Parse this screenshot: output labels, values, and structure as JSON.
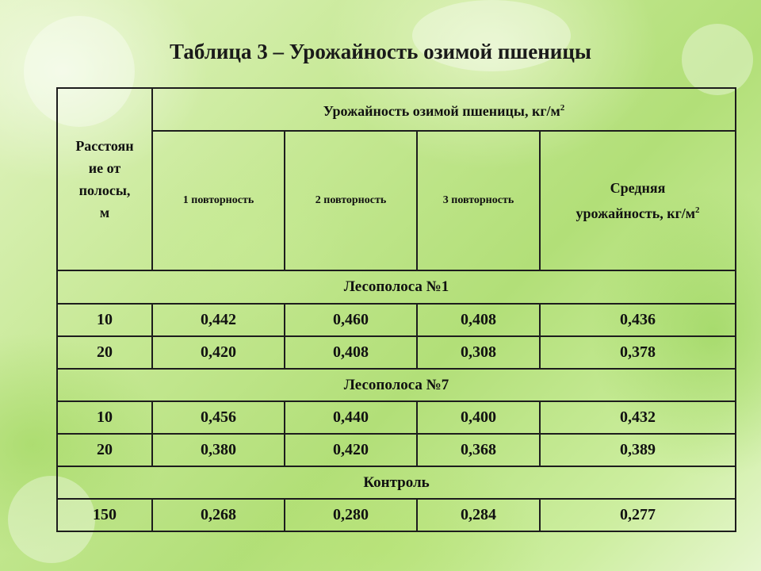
{
  "title": "Таблица 3 – Урожайность озимой пшеницы",
  "table": {
    "row_header": "Расстояние от полосы, м",
    "row_header_lines": [
      "Расстоян",
      "ие от",
      "полосы,",
      "м"
    ],
    "group_header": "Урожайность озимой пшеницы, кг/м",
    "group_header_sup": "2",
    "columns": [
      "1 повторность",
      "2  повторность",
      "3 повторность"
    ],
    "mean_header_line1": "Средняя",
    "mean_header_line2": "урожайность, кг/м",
    "mean_header_sup": "2",
    "sections": [
      {
        "name": "Лесополоса №1",
        "rows": [
          {
            "distance": "10",
            "r1": "0,442",
            "r2": "0,460",
            "r3": "0,408",
            "mean": "0,436"
          },
          {
            "distance": "20",
            "r1": "0,420",
            "r2": "0,408",
            "r3": "0,308",
            "mean": "0,378"
          }
        ]
      },
      {
        "name": "Лесополоса №7",
        "rows": [
          {
            "distance": "10",
            "r1": "0,456",
            "r2": "0,440",
            "r3": "0,400",
            "mean": "0,432"
          },
          {
            "distance": "20",
            "r1": "0,380",
            "r2": "0,420",
            "r3": "0,368",
            "mean": "0,389"
          }
        ]
      },
      {
        "name": "Контроль",
        "rows": [
          {
            "distance": "150",
            "r1": "0,268",
            "r2": "0,280",
            "r3": "0,284",
            "mean": "0,277"
          }
        ]
      }
    ]
  }
}
